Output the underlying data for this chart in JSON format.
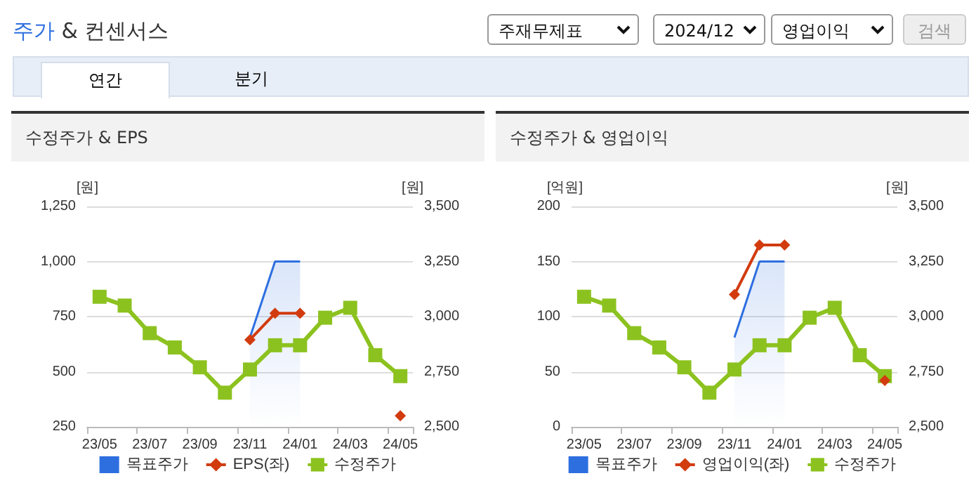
{
  "chart_data": [
    {
      "type": "other",
      "title": "주가 & 컨센서스",
      "annotations": [
        "주재무제표",
        "2024/12",
        "영업이익",
        "검색",
        "연간",
        "분기"
      ]
    },
    {
      "type": "line",
      "title": "수정주가 & EPS",
      "ylabel": "[원]",
      "y2label": "[원]",
      "categories": [
        "23/05",
        null,
        "23/07",
        null,
        "23/09",
        null,
        "23/11",
        null,
        "24/01",
        null,
        "24/03",
        null,
        "24/05"
      ],
      "series": [
        {
          "name": "목표주가",
          "type": "area",
          "axis": "y2",
          "color": "#2e6fe0",
          "marker": "none",
          "values": [
            null,
            null,
            null,
            null,
            null,
            null,
            2905,
            3250,
            3250,
            null,
            null,
            null,
            null
          ]
        },
        {
          "name": "EPS(좌)",
          "color": "#d23b0e",
          "marker": "diamond",
          "values": [
            null,
            null,
            null,
            null,
            null,
            null,
            645,
            765,
            765,
            null,
            null,
            null,
            300
          ]
        },
        {
          "name": "수정주가",
          "axis": "y2",
          "color": "#8cc21f",
          "marker": "square",
          "values": [
            3090,
            3050,
            2925,
            2860,
            2770,
            2655,
            2760,
            2870,
            2870,
            2995,
            3040,
            2825,
            2730
          ]
        }
      ],
      "ylim": [
        250,
        1250
      ],
      "yticks": [
        250,
        500,
        750,
        {
          "value": 1000,
          "label": "1,000"
        },
        {
          "value": 1250,
          "label": "1,250"
        }
      ],
      "y2lim": [
        2500,
        3500
      ],
      "y2ticks": [
        {
          "value": 2500,
          "label": "2,500"
        },
        {
          "value": 2750,
          "label": "2,750"
        },
        {
          "value": 3000,
          "label": "3,000"
        },
        {
          "value": 3250,
          "label": "3,250"
        },
        {
          "value": 3500,
          "label": "3,500"
        }
      ],
      "grid": "y",
      "legend": "bottom"
    },
    {
      "type": "line",
      "title": "수정주가 & 영업이익",
      "ylabel": "[억원]",
      "y2label": "[원]",
      "categories": [
        "23/05",
        null,
        "23/07",
        null,
        "23/09",
        null,
        "23/11",
        null,
        "24/01",
        null,
        "24/03",
        null,
        "24/05"
      ],
      "series": [
        {
          "name": "목표주가",
          "type": "area",
          "axis": "y2",
          "color": "#2e6fe0",
          "marker": "none",
          "values": [
            null,
            null,
            null,
            null,
            null,
            null,
            2905,
            3250,
            3250,
            null,
            null,
            null,
            null
          ]
        },
        {
          "name": "영업이익(좌)",
          "color": "#d23b0e",
          "marker": "diamond",
          "values": [
            null,
            null,
            null,
            null,
            null,
            null,
            120,
            165,
            165,
            null,
            null,
            null,
            42
          ]
        },
        {
          "name": "수정주가",
          "axis": "y2",
          "color": "#8cc21f",
          "marker": "square",
          "values": [
            3090,
            3050,
            2925,
            2860,
            2770,
            2655,
            2760,
            2870,
            2870,
            2995,
            3040,
            2825,
            2730
          ]
        }
      ],
      "ylim": [
        0,
        200
      ],
      "yticks": [
        0,
        50,
        100,
        150,
        200
      ],
      "y2lim": [
        2500,
        3500
      ],
      "y2ticks": [
        {
          "value": 2500,
          "label": "2,500"
        },
        {
          "value": 2750,
          "label": "2,750"
        },
        {
          "value": 3000,
          "label": "3,000"
        },
        {
          "value": 3250,
          "label": "3,250"
        },
        {
          "value": 3500,
          "label": "3,500"
        }
      ],
      "grid": "y",
      "legend": "bottom"
    }
  ]
}
